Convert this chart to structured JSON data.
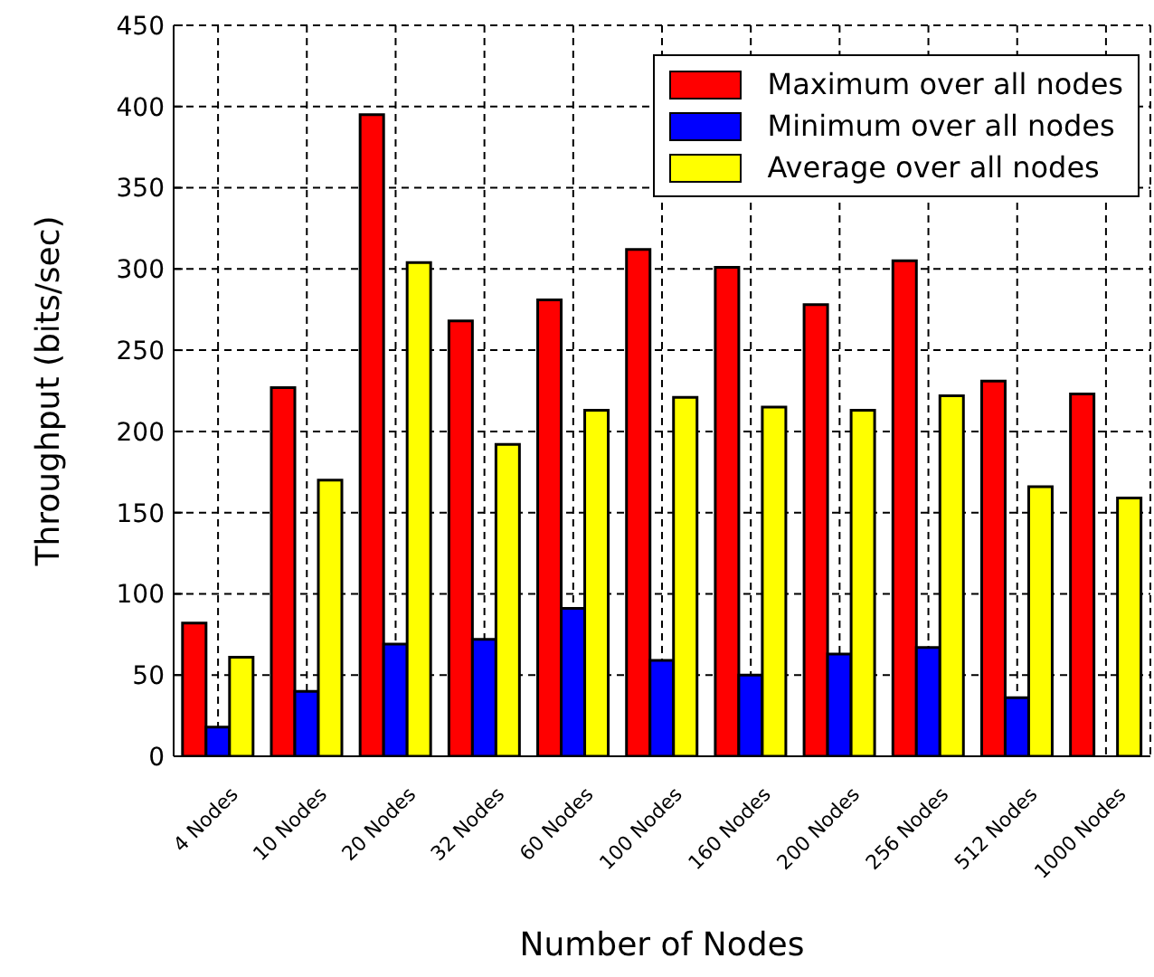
{
  "chart_data": {
    "type": "bar",
    "xlabel": "Number of Nodes",
    "ylabel": "Throughput (bits/sec)",
    "categories": [
      "4 Nodes",
      "10 Nodes",
      "20 Nodes",
      "32 Nodes",
      "60 Nodes",
      "100 Nodes",
      "160 Nodes",
      "200 Nodes",
      "256 Nodes",
      "512 Nodes",
      "1000 Nodes"
    ],
    "series": [
      {
        "name": "Maximum over all nodes",
        "color": "#ff0000",
        "values": [
          82,
          227,
          395,
          268,
          281,
          312,
          301,
          278,
          305,
          231,
          223
        ]
      },
      {
        "name": "Minimum over all nodes",
        "color": "#0000ff",
        "values": [
          18,
          40,
          69,
          72,
          91,
          59,
          50,
          63,
          67,
          36,
          null
        ]
      },
      {
        "name": "Average over all nodes",
        "color": "#ffff00",
        "values": [
          61,
          170,
          304,
          192,
          213,
          221,
          215,
          213,
          222,
          166,
          159
        ]
      }
    ],
    "ylim": [
      0,
      450
    ],
    "yticks": [
      0,
      50,
      100,
      150,
      200,
      250,
      300,
      350,
      400,
      450
    ],
    "grid": true,
    "legend": "top right"
  }
}
